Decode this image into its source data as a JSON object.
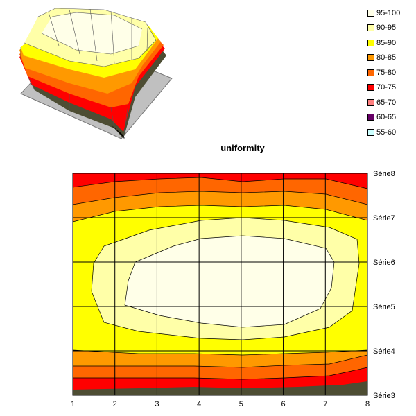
{
  "chart_data": {
    "type": "heatmap",
    "title": "uniformity",
    "x": [
      1,
      2,
      3,
      4,
      5,
      6,
      7,
      8
    ],
    "y_series": [
      "Série3",
      "Série4",
      "Série5",
      "Série6",
      "Série7",
      "Série8"
    ],
    "legend_position": "top-right",
    "grid": true,
    "bands": [
      {
        "label": "95-100",
        "color": "#ffffe8"
      },
      {
        "label": "90-95",
        "color": "#ffffa8"
      },
      {
        "label": "85-90",
        "color": "#ffff00"
      },
      {
        "label": "80-85",
        "color": "#ff9900"
      },
      {
        "label": "75-80",
        "color": "#ff6600"
      },
      {
        "label": "70-75",
        "color": "#ff0000"
      },
      {
        "label": "65-70",
        "color": "#ff8080"
      },
      {
        "label": "60-65",
        "color": "#660066"
      },
      {
        "label": "55-60",
        "color": "#ccffff"
      }
    ]
  }
}
